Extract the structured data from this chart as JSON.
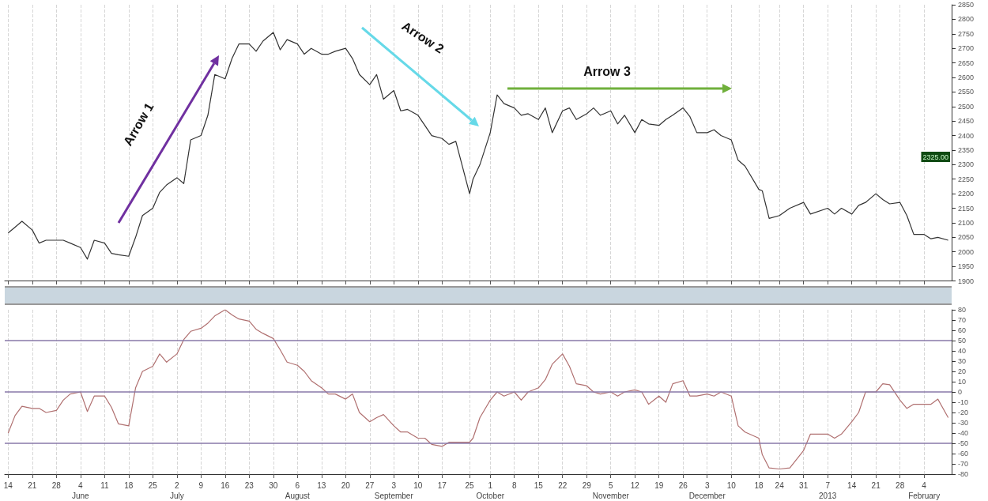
{
  "chart_data": [
    {
      "type": "line",
      "annotations": [
        "Arrow 1",
        "Arrow 2",
        "Arrow 3",
        "2325.00"
      ],
      "x": [
        "2012-05-14",
        "2012-05-16",
        "2012-05-18",
        "2012-05-21",
        "2012-05-23",
        "2012-05-25",
        "2012-05-28",
        "2012-05-30",
        "2012-06-01",
        "2012-06-04",
        "2012-06-06",
        "2012-06-08",
        "2012-06-11",
        "2012-06-13",
        "2012-06-15",
        "2012-06-18",
        "2012-06-20",
        "2012-06-22",
        "2012-06-25",
        "2012-06-27",
        "2012-06-29",
        "2012-07-02",
        "2012-07-04",
        "2012-07-06",
        "2012-07-09",
        "2012-07-11",
        "2012-07-13",
        "2012-07-16",
        "2012-07-18",
        "2012-07-20",
        "2012-07-23",
        "2012-07-25",
        "2012-07-27",
        "2012-07-30",
        "2012-08-01",
        "2012-08-03",
        "2012-08-06",
        "2012-08-08",
        "2012-08-10",
        "2012-08-13",
        "2012-08-15",
        "2012-08-17",
        "2012-08-20",
        "2012-08-22",
        "2012-08-24",
        "2012-08-27",
        "2012-08-29",
        "2012-08-31",
        "2012-09-03",
        "2012-09-05",
        "2012-09-07",
        "2012-09-10",
        "2012-09-12",
        "2012-09-14",
        "2012-09-17",
        "2012-09-19",
        "2012-09-21",
        "2012-09-25",
        "2012-09-26",
        "2012-09-28",
        "2012-10-01",
        "2012-10-03",
        "2012-10-05",
        "2012-10-08",
        "2012-10-10",
        "2012-10-12",
        "2012-10-15",
        "2012-10-17",
        "2012-10-19",
        "2012-10-22",
        "2012-10-24",
        "2012-10-26",
        "2012-10-29",
        "2012-10-31",
        "2012-11-02",
        "2012-11-05",
        "2012-11-07",
        "2012-11-09",
        "2012-11-12",
        "2012-11-14",
        "2012-11-16",
        "2012-11-19",
        "2012-11-21",
        "2012-11-23",
        "2012-11-26",
        "2012-11-28",
        "2012-11-30",
        "2012-12-03",
        "2012-12-05",
        "2012-12-07",
        "2012-12-10",
        "2012-12-12",
        "2012-12-14",
        "2012-12-18",
        "2012-12-19",
        "2012-12-21",
        "2012-12-24",
        "2012-12-27",
        "2012-12-31",
        "2013-01-02",
        "2013-01-07",
        "2013-01-09",
        "2013-01-11",
        "2013-01-14",
        "2013-01-16",
        "2013-01-18",
        "2013-01-21",
        "2013-01-23",
        "2013-01-25",
        "2013-01-28",
        "2013-01-30",
        "2013-02-01",
        "2013-02-04",
        "2013-02-06",
        "2013-02-08",
        "2013-02-11"
      ],
      "series": [
        {
          "color": "#333333",
          "values": [
            2065,
            2085,
            2105,
            2075,
            2030,
            2040,
            2040,
            2040,
            2030,
            2015,
            1975,
            2040,
            2030,
            1995,
            1990,
            1985,
            2050,
            2125,
            2150,
            2205,
            2230,
            2255,
            2235,
            2385,
            2400,
            2470,
            2610,
            2595,
            2665,
            2715,
            2715,
            2690,
            2725,
            2755,
            2695,
            2730,
            2715,
            2680,
            2700,
            2680,
            2680,
            2690,
            2700,
            2665,
            2610,
            2575,
            2610,
            2525,
            2555,
            2485,
            2490,
            2470,
            2435,
            2400,
            2390,
            2370,
            2380,
            2200,
            2250,
            2300,
            2410,
            2540,
            2510,
            2495,
            2470,
            2475,
            2455,
            2495,
            2410,
            2485,
            2495,
            2455,
            2475,
            2495,
            2470,
            2485,
            2440,
            2470,
            2410,
            2455,
            2440,
            2435,
            2455,
            2470,
            2495,
            2465,
            2410,
            2410,
            2420,
            2400,
            2385,
            2315,
            2295,
            2215,
            2210,
            2115,
            2125,
            2150,
            2170,
            2130,
            2150,
            2130,
            2150,
            2130,
            2160,
            2170,
            2200,
            2180,
            2165,
            2170,
            2125,
            2060,
            2060,
            2045,
            2050,
            2040
          ]
        }
      ],
      "xlim": [
        "2012-05-13",
        "2013-02-12"
      ],
      "xticks": [
        {
          "value": "2012-05-14",
          "label": null
        },
        {
          "value": "2012-05-21",
          "label": null
        },
        {
          "value": "2012-05-28",
          "label": null
        },
        {
          "value": "2012-06-04",
          "label": null
        },
        {
          "value": "2012-06-11",
          "label": null
        },
        {
          "value": "2012-06-18",
          "label": null
        },
        {
          "value": "2012-06-25",
          "label": null
        },
        {
          "value": "2012-07-02",
          "label": null
        },
        {
          "value": "2012-07-09",
          "label": null
        },
        {
          "value": "2012-07-16",
          "label": null
        },
        {
          "value": "2012-07-23",
          "label": null
        },
        {
          "value": "2012-07-30",
          "label": null
        },
        {
          "value": "2012-08-06",
          "label": null
        },
        {
          "value": "2012-08-13",
          "label": null
        },
        {
          "value": "2012-08-20",
          "label": null
        },
        {
          "value": "2012-08-27",
          "label": null
        },
        {
          "value": "2012-09-03",
          "label": null
        },
        {
          "value": "2012-09-10",
          "label": null
        },
        {
          "value": "2012-09-17",
          "label": null
        },
        {
          "value": "2012-09-25",
          "label": null
        },
        {
          "value": "2012-10-01",
          "label": null
        },
        {
          "value": "2012-10-08",
          "label": null
        },
        {
          "value": "2012-10-15",
          "label": null
        },
        {
          "value": "2012-10-22",
          "label": null
        },
        {
          "value": "2012-10-29",
          "label": null
        },
        {
          "value": "2012-11-05",
          "label": null
        },
        {
          "value": "2012-11-12",
          "label": null
        },
        {
          "value": "2012-11-19",
          "label": null
        },
        {
          "value": "2012-11-26",
          "label": null
        },
        {
          "value": "2012-12-03",
          "label": null
        },
        {
          "value": "2012-12-10",
          "label": null
        },
        {
          "value": "2012-12-18",
          "label": null
        },
        {
          "value": "2012-12-24",
          "label": null
        },
        {
          "value": "2012-12-31",
          "label": null
        },
        {
          "value": "2013-01-07",
          "label": null
        },
        {
          "value": "2013-01-14",
          "label": null
        },
        {
          "value": "2013-01-21",
          "label": null
        },
        {
          "value": "2013-01-28",
          "label": null
        },
        {
          "value": "2013-02-04",
          "label": null
        }
      ],
      "ylim": [
        1900,
        2850
      ],
      "yticks": [
        1900,
        1950,
        2000,
        2050,
        2100,
        2150,
        2200,
        2250,
        2300,
        2350,
        2400,
        2450,
        2500,
        2550,
        2600,
        2650,
        2700,
        2750,
        2800,
        2850
      ],
      "grid": "x",
      "tick_labels": "y"
    },
    {
      "type": "line",
      "x": [
        "2012-05-14",
        "2012-05-16",
        "2012-05-18",
        "2012-05-21",
        "2012-05-23",
        "2012-05-25",
        "2012-05-28",
        "2012-05-30",
        "2012-06-01",
        "2012-06-04",
        "2012-06-06",
        "2012-06-08",
        "2012-06-11",
        "2012-06-13",
        "2012-06-15",
        "2012-06-18",
        "2012-06-20",
        "2012-06-22",
        "2012-06-25",
        "2012-06-27",
        "2012-06-29",
        "2012-07-02",
        "2012-07-04",
        "2012-07-06",
        "2012-07-09",
        "2012-07-11",
        "2012-07-13",
        "2012-07-16",
        "2012-07-18",
        "2012-07-20",
        "2012-07-23",
        "2012-07-25",
        "2012-07-27",
        "2012-07-30",
        "2012-08-01",
        "2012-08-03",
        "2012-08-06",
        "2012-08-08",
        "2012-08-10",
        "2012-08-13",
        "2012-08-15",
        "2012-08-17",
        "2012-08-20",
        "2012-08-22",
        "2012-08-24",
        "2012-08-27",
        "2012-08-29",
        "2012-08-31",
        "2012-09-03",
        "2012-09-05",
        "2012-09-07",
        "2012-09-10",
        "2012-09-12",
        "2012-09-14",
        "2012-09-17",
        "2012-09-19",
        "2012-09-21",
        "2012-09-25",
        "2012-09-26",
        "2012-09-28",
        "2012-10-01",
        "2012-10-03",
        "2012-10-05",
        "2012-10-08",
        "2012-10-10",
        "2012-10-12",
        "2012-10-15",
        "2012-10-17",
        "2012-10-19",
        "2012-10-22",
        "2012-10-24",
        "2012-10-26",
        "2012-10-29",
        "2012-10-31",
        "2012-11-02",
        "2012-11-05",
        "2012-11-07",
        "2012-11-09",
        "2012-11-12",
        "2012-11-14",
        "2012-11-16",
        "2012-11-19",
        "2012-11-21",
        "2012-11-23",
        "2012-11-26",
        "2012-11-28",
        "2012-11-30",
        "2012-12-03",
        "2012-12-05",
        "2012-12-07",
        "2012-12-10",
        "2012-12-12",
        "2012-12-14",
        "2012-12-18",
        "2012-12-19",
        "2012-12-21",
        "2012-12-24",
        "2012-12-27",
        "2012-12-31",
        "2013-01-02",
        "2013-01-07",
        "2013-01-09",
        "2013-01-11",
        "2013-01-14",
        "2013-01-16",
        "2013-01-18",
        "2013-01-21",
        "2013-01-23",
        "2013-01-25",
        "2013-01-28",
        "2013-01-30",
        "2013-02-01",
        "2013-02-04",
        "2013-02-06",
        "2013-02-08",
        "2013-02-11"
      ],
      "series": [
        {
          "color": "#b07070",
          "values": [
            -40,
            -23,
            -14,
            -16,
            -16,
            -20,
            -18,
            -8,
            -2,
            0,
            -19,
            -4,
            -4,
            -15,
            -31,
            -33,
            4,
            20,
            25,
            37,
            29,
            37,
            51,
            59,
            62,
            67,
            74,
            80,
            75,
            71,
            69,
            61,
            57,
            52,
            41,
            29,
            26,
            20,
            11,
            4,
            -2,
            -2,
            -7,
            -2,
            -20,
            -29,
            -25,
            -22,
            -33,
            -39,
            -39,
            -45,
            -45,
            -51,
            -53,
            -49,
            -49,
            -49,
            -45,
            -25,
            -8,
            0,
            -4,
            0,
            -8,
            0,
            4,
            12,
            27,
            37,
            25,
            8,
            6,
            0,
            -2,
            0,
            -4,
            0,
            2,
            0,
            -12,
            -4,
            -10,
            8,
            11,
            -4,
            -4,
            -2,
            -4,
            0,
            -4,
            -33,
            -39,
            -45,
            -61,
            -74,
            -75,
            -74,
            -57,
            -41,
            -41,
            -45,
            -41,
            -29,
            -20,
            0,
            0,
            8,
            7,
            -8,
            -16,
            -12,
            -12,
            -12,
            -7,
            -25
          ]
        }
      ],
      "xlim": [
        "2012-05-13",
        "2013-02-12"
      ],
      "xticks": [
        {
          "value": "2012-05-14",
          "label": "14"
        },
        {
          "value": "2012-05-21",
          "label": "21"
        },
        {
          "value": "2012-05-28",
          "label": "28"
        },
        {
          "value": "2012-06-04",
          "label": "4\nJune"
        },
        {
          "value": "2012-06-11",
          "label": "11"
        },
        {
          "value": "2012-06-18",
          "label": "18"
        },
        {
          "value": "2012-06-25",
          "label": "25"
        },
        {
          "value": "2012-07-02",
          "label": "2\nJuly"
        },
        {
          "value": "2012-07-09",
          "label": "9"
        },
        {
          "value": "2012-07-16",
          "label": "16"
        },
        {
          "value": "2012-07-23",
          "label": "23"
        },
        {
          "value": "2012-07-30",
          "label": "30"
        },
        {
          "value": "2012-08-06",
          "label": "6\nAugust"
        },
        {
          "value": "2012-08-13",
          "label": "13"
        },
        {
          "value": "2012-08-20",
          "label": "20"
        },
        {
          "value": "2012-08-27",
          "label": "27"
        },
        {
          "value": "2012-09-03",
          "label": "3\nSeptember"
        },
        {
          "value": "2012-09-10",
          "label": "10"
        },
        {
          "value": "2012-09-17",
          "label": "17"
        },
        {
          "value": "2012-09-25",
          "label": "25"
        },
        {
          "value": "2012-10-01",
          "label": "1\nOctober"
        },
        {
          "value": "2012-10-08",
          "label": "8"
        },
        {
          "value": "2012-10-15",
          "label": "15"
        },
        {
          "value": "2012-10-22",
          "label": "22"
        },
        {
          "value": "2012-10-29",
          "label": "29"
        },
        {
          "value": "2012-11-05",
          "label": "5\nNovember"
        },
        {
          "value": "2012-11-12",
          "label": "12"
        },
        {
          "value": "2012-11-19",
          "label": "19"
        },
        {
          "value": "2012-11-26",
          "label": "26"
        },
        {
          "value": "2012-12-03",
          "label": "3\nDecember"
        },
        {
          "value": "2012-12-10",
          "label": "10"
        },
        {
          "value": "2012-12-18",
          "label": "18"
        },
        {
          "value": "2012-12-24",
          "label": "24"
        },
        {
          "value": "2012-12-31",
          "label": "31"
        },
        {
          "value": "2013-01-07",
          "label": "7\n2013"
        },
        {
          "value": "2013-01-14",
          "label": "14"
        },
        {
          "value": "2013-01-21",
          "label": "21"
        },
        {
          "value": "2013-01-28",
          "label": "28"
        },
        {
          "value": "2013-02-04",
          "label": "4\nFebruary"
        }
      ],
      "ylim": [
        -80,
        80
      ],
      "yticks": [
        -80,
        -70,
        -60,
        -50,
        -40,
        -30,
        -20,
        -10,
        0,
        10,
        20,
        30,
        40,
        50,
        60,
        70,
        80
      ],
      "ref_lines": [
        {
          "axis": "y",
          "value": 50,
          "color": "#8878a8"
        },
        {
          "axis": "y",
          "value": 0,
          "color": "#8878a8"
        },
        {
          "axis": "y",
          "value": -50,
          "color": "#8878a8"
        }
      ],
      "grid": "x"
    }
  ]
}
